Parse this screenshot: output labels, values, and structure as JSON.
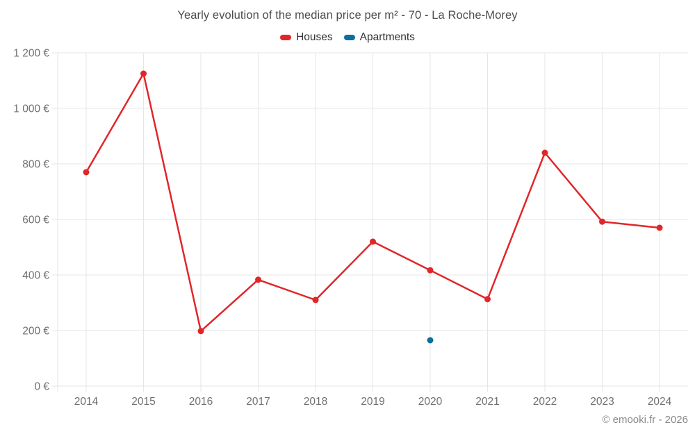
{
  "title": "Yearly evolution of the median price per m² - 70 - La Roche-Morey",
  "footer": "© emooki.fr - 2026",
  "colors": {
    "houses": "#e12629",
    "apartments": "#0e6e9e",
    "gridline": "#e6e6e6",
    "axis_label": "#707070",
    "title_text": "#4c4c4c",
    "footer_text": "#8a8a8a"
  },
  "chart_data": {
    "type": "line",
    "title": "Yearly evolution of the median price per m² - 70 - La Roche-Morey",
    "categories": [
      "2014",
      "2015",
      "2016",
      "2017",
      "2018",
      "2019",
      "2020",
      "2021",
      "2022",
      "2023",
      "2024"
    ],
    "series": [
      {
        "name": "Houses",
        "color": "#e12629",
        "marker": "circle",
        "values": [
          770,
          1125,
          198,
          383,
          310,
          520,
          417,
          313,
          840,
          592,
          570
        ]
      },
      {
        "name": "Apartments",
        "color": "#0e6e9e",
        "marker": "circle",
        "values": [
          null,
          null,
          null,
          null,
          null,
          null,
          165,
          null,
          null,
          null,
          null
        ]
      }
    ],
    "ylim": [
      0,
      1200
    ],
    "ytick_step": 200,
    "ytick_labels": [
      "0 €",
      "200 €",
      "400 €",
      "600 €",
      "800 €",
      "1 000 €",
      "1 200 €"
    ],
    "xlabel": "",
    "ylabel": "",
    "grid": true,
    "legend_position": "top"
  }
}
